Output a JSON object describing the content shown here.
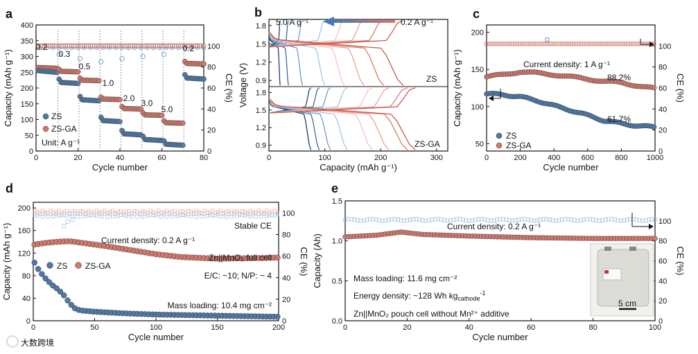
{
  "colors": {
    "zs": "#4f7aa6",
    "zsga": "#d2786c",
    "zs_light": "#a9c7e3",
    "zsga_light": "#f0b0a8",
    "frame": "#111111"
  },
  "watermark": "大数跨境",
  "chart_data": [
    {
      "panel": "a",
      "type": "scatter",
      "xlabel": "Cycle number",
      "ylabel": "Capacity (mAh g⁻¹)",
      "y2label": "CE (%)",
      "xlim": [
        0,
        80
      ],
      "ylim": [
        0,
        400
      ],
      "y2lim": [
        0,
        120
      ],
      "xticks": [
        0,
        20,
        40,
        60,
        80
      ],
      "yticks": [
        0,
        50,
        100,
        150,
        200,
        250,
        300,
        350,
        400
      ],
      "y2ticks": [
        0,
        20,
        40,
        60,
        80,
        100
      ],
      "legend": [
        "ZS",
        "ZS-GA"
      ],
      "unit_note": "Unit: A g⁻¹",
      "rate_labels": [
        "0.2",
        "0.3",
        "0.5",
        "1.0",
        "2.0",
        "3.0",
        "5.0",
        "0.2"
      ],
      "rate_steps": [
        {
          "rate": "0.2",
          "x0": 1,
          "x1": 10,
          "zs": 255,
          "zsga": 265
        },
        {
          "rate": "0.3",
          "x0": 11,
          "x1": 20,
          "zs": 218,
          "zsga": 253
        },
        {
          "rate": "0.5",
          "x0": 21,
          "x1": 30,
          "zs": 163,
          "zsga": 225
        },
        {
          "rate": "1.0",
          "x0": 31,
          "x1": 40,
          "zs": 97,
          "zsga": 165
        },
        {
          "rate": "2.0",
          "x0": 41,
          "x1": 50,
          "zs": 55,
          "zsga": 135
        },
        {
          "rate": "3.0",
          "x0": 51,
          "x1": 60,
          "zs": 37,
          "zsga": 115
        },
        {
          "rate": "5.0",
          "x0": 61,
          "x1": 70,
          "zs": 22,
          "zsga": 90
        },
        {
          "rate": "0.2",
          "x0": 71,
          "x1": 80,
          "zs": 232,
          "zsga": 278
        }
      ],
      "ce_zsga": 100,
      "ce_zs": 98
    },
    {
      "panel": "b",
      "type": "line",
      "xlabel": "Capacity (mAh g⁻¹)",
      "ylabel": "Voltage (V)",
      "xlim": [
        0,
        320
      ],
      "ylim": [
        0.8,
        1.9
      ],
      "xticks": [
        0,
        100,
        200,
        300
      ],
      "yticks": [
        0.9,
        1.2,
        1.5,
        1.8
      ],
      "arrow_left": "5.0 A g⁻¹",
      "arrow_right": "0.2 A g⁻¹",
      "subplots": [
        "ZS",
        "ZS-GA"
      ],
      "zs_capacities": [
        240,
        205,
        170,
        135,
        100,
        60,
        35,
        20
      ],
      "zsga_capacities": [
        262,
        248,
        215,
        185,
        140,
        110,
        90,
        75
      ]
    },
    {
      "panel": "c",
      "type": "scatter",
      "xlabel": "Cycle number",
      "ylabel": "Capacity (mAh g⁻¹)",
      "y2label": "CE (%)",
      "xlim": [
        0,
        1000
      ],
      "ylim": [
        40,
        210
      ],
      "y2lim": [
        0,
        120
      ],
      "xticks": [
        0,
        200,
        400,
        600,
        800,
        1000
      ],
      "yticks": [
        50,
        100,
        150,
        200
      ],
      "y2ticks": [
        0,
        20,
        40,
        60,
        80,
        100
      ],
      "annotation": "Current density: 1 A g⁻¹",
      "zsga_retention": "88.2%",
      "zs_retention": "61.7%",
      "legend": [
        "ZS",
        "ZS-GA"
      ],
      "zs_series": [
        [
          0,
          117
        ],
        [
          100,
          116
        ],
        [
          200,
          113
        ],
        [
          300,
          108
        ],
        [
          400,
          101
        ],
        [
          500,
          95
        ],
        [
          600,
          88
        ],
        [
          700,
          81
        ],
        [
          800,
          77
        ],
        [
          900,
          74
        ],
        [
          1000,
          72
        ]
      ],
      "zsga_series": [
        [
          0,
          140
        ],
        [
          100,
          143
        ],
        [
          200,
          147
        ],
        [
          300,
          145
        ],
        [
          400,
          143
        ],
        [
          500,
          140
        ],
        [
          600,
          137
        ],
        [
          700,
          134
        ],
        [
          800,
          132
        ],
        [
          900,
          128
        ],
        [
          1000,
          124
        ]
      ],
      "ce": 102
    },
    {
      "panel": "d",
      "type": "scatter",
      "xlabel": "Cycle number",
      "ylabel": "Capacity (mAh g⁻¹)",
      "y2label": "CE (%)",
      "xlim": [
        0,
        200
      ],
      "ylim": [
        0,
        210
      ],
      "y2lim": [
        0,
        110
      ],
      "xticks": [
        0,
        50,
        100,
        150,
        200
      ],
      "yticks": [
        0,
        40,
        80,
        120,
        160,
        200
      ],
      "y2ticks": [
        0,
        20,
        40,
        60,
        80,
        100
      ],
      "stable_ce": "Stable CE",
      "current_density": "Current density: 0.2 A g⁻¹",
      "cell": "Zn||MnO₂ full cell",
      "ratio": "E/C: ~10; N/P: ~ 4",
      "mass_loading": "Mass loading:  10.4 mg cm⁻²",
      "legend": [
        "ZS",
        "ZS-GA"
      ],
      "zs_series": [
        [
          1,
          103
        ],
        [
          5,
          88
        ],
        [
          10,
          75
        ],
        [
          15,
          64
        ],
        [
          20,
          56
        ],
        [
          25,
          45
        ],
        [
          30,
          30
        ],
        [
          35,
          20
        ],
        [
          40,
          18
        ],
        [
          50,
          16
        ],
        [
          75,
          13
        ],
        [
          100,
          11
        ],
        [
          150,
          9
        ],
        [
          200,
          7
        ]
      ],
      "zsga_series": [
        [
          1,
          135
        ],
        [
          10,
          138
        ],
        [
          20,
          140
        ],
        [
          30,
          141
        ],
        [
          40,
          138
        ],
        [
          60,
          132
        ],
        [
          80,
          125
        ],
        [
          100,
          118
        ],
        [
          120,
          113
        ],
        [
          150,
          110
        ],
        [
          180,
          111
        ],
        [
          200,
          112
        ]
      ],
      "ce": 101
    },
    {
      "panel": "e",
      "type": "scatter",
      "xlabel": "Cycle number",
      "ylabel": "Capacity (Ah)",
      "y2label": "CE (%)",
      "xlim": [
        0,
        100
      ],
      "ylim": [
        0,
        1.5
      ],
      "y2lim": [
        0,
        120
      ],
      "xticks": [
        0,
        20,
        40,
        60,
        80,
        100
      ],
      "yticks": [
        0.0,
        0.5,
        1.0,
        1.5
      ],
      "y2ticks": [
        0,
        20,
        40,
        60,
        80,
        100
      ],
      "current_density": "Current density: 0.2 A g⁻¹",
      "mass_loading": "Mass loading:  11.6 mg cm⁻²",
      "energy_density": "Energy density: ~128 Wh kg",
      "energy_sub": "cathode",
      "energy_sup": "-1",
      "pouch": "Zn||MnO₂ pouch cell without Mn²⁺ additive",
      "scale_bar": "5 cm",
      "capacity_series": [
        [
          0,
          1.05
        ],
        [
          10,
          1.07
        ],
        [
          18,
          1.11
        ],
        [
          25,
          1.08
        ],
        [
          40,
          1.06
        ],
        [
          60,
          1.04
        ],
        [
          80,
          1.03
        ],
        [
          100,
          1.03
        ]
      ],
      "ce": 101
    }
  ]
}
